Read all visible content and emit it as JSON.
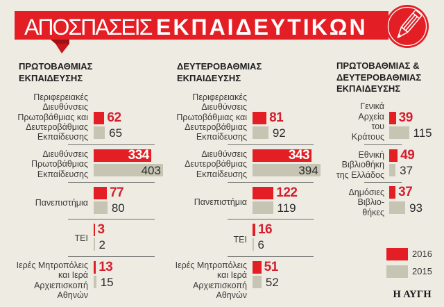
{
  "header": {
    "title_light": "ΑΠΟΣΠΑΣΕΙΣ",
    "title_bold": "ΕΚΠΑΙΔΕΥΤΙΚΩΝ",
    "icon": "pencil-icon"
  },
  "colors": {
    "accent_red": "#e31e24",
    "bar_2016": "#e31e24",
    "bar_2015": "#c6c5b4",
    "value_red": "#d41f2e",
    "background": "#eeebe2"
  },
  "sections": [
    {
      "title": [
        "ΠΡΩΤΟΒΑΘΜΙΑΣ",
        "ΕΚΠΑΙΔΕΥΣΗΣ"
      ],
      "rows": [
        {
          "label": [
            "Περιφερειακές",
            "Διευθύνσεις",
            "Πρωτοβάθμιας και",
            "Δευτεροβάθμιας",
            "Εκπαίδευσης"
          ],
          "v2016": 62,
          "v2015": 65
        },
        {
          "label": [
            "Διευθύνσεις",
            "Πρωτοβάθμιας",
            "Εκπαίδευσης"
          ],
          "v2016": 334,
          "v2015": 403
        },
        {
          "label": [
            "Πανεπιστήμια"
          ],
          "v2016": 77,
          "v2015": 80
        },
        {
          "label": [
            "ΤΕΙ"
          ],
          "v2016": 3,
          "v2015": 2
        },
        {
          "label": [
            "Ιερές Μητροπόλεις",
            "και Ιερά",
            "Αρχιεπισκοπή",
            "Αθηνών"
          ],
          "v2016": 13,
          "v2015": 15
        }
      ]
    },
    {
      "title": [
        "ΔΕΥΤΕΡΟΒΑΘΜΙΑΣ",
        "ΕΚΠΑΙΔΕΥΣΗΣ"
      ],
      "rows": [
        {
          "label": [
            "Περιφερειακές",
            "Διευθύνσεις",
            "Πρωτοβάθμιας και",
            "Δευτεροβάθμιας",
            "Εκπαίδευσης"
          ],
          "v2016": 81,
          "v2015": 92
        },
        {
          "label": [
            "Διευθύνσεις",
            "Δευτεροβάθμιας",
            "Εκπαίδευσης"
          ],
          "v2016": 343,
          "v2015": 394
        },
        {
          "label": [
            "Πανεπιστήμια"
          ],
          "v2016": 122,
          "v2015": 119
        },
        {
          "label": [
            "ΤΕΙ"
          ],
          "v2016": 16,
          "v2015": 6
        },
        {
          "label": [
            "Ιερές Μητροπόλεις",
            "και Ιερά",
            "Αρχιεπισκοπή",
            "Αθηνών"
          ],
          "v2016": 51,
          "v2015": 52
        }
      ]
    },
    {
      "title": [
        "ΠΡΩΤΟΒΑΘΜΙΑΣ &",
        "ΔΕΥΤΕΡΟΒΑΘΜΙΑΣ",
        "ΕΚΠΑΙΔΕΥΣΗΣ"
      ],
      "rows": [
        {
          "label": [
            "Γενικά",
            "Αρχεία",
            "του",
            "Κράτους"
          ],
          "v2016": 39,
          "v2015": 115
        },
        {
          "label": [
            "Εθνική",
            "Βιβλιοθήκη",
            "της Ελλάδος"
          ],
          "v2016": 49,
          "v2015": 37
        },
        {
          "label": [
            "Δημόσιες",
            "Βιβλιο-",
            "θήκες"
          ],
          "v2016": 37,
          "v2015": 93
        }
      ]
    }
  ],
  "legend": [
    {
      "label": "2016",
      "color": "#e31e24"
    },
    {
      "label": "2015",
      "color": "#c6c5b4"
    }
  ],
  "source": "Η ΑΥΓΗ",
  "chart_data": [
    {
      "type": "bar",
      "orientation": "horizontal",
      "suptitle": "ΑΠΟΣΠΑΣΕΙΣ ΕΚΠΑΙΔΕΥΤΙΚΩΝ",
      "title": "ΠΡΩΤΟΒΑΘΜΙΑΣ ΕΚΠΑΙΔΕΥΣΗΣ",
      "categories": [
        "Περιφερειακές Διευθύνσεις Πρωτοβάθμιας και Δευτεροβάθμιας Εκπαίδευσης",
        "Διευθύνσεις Πρωτοβάθμιας Εκπαίδευσης",
        "Πανεπιστήμια",
        "ΤΕΙ",
        "Ιερές Μητροπόλεις και Ιερά Αρχιεπισκοπή Αθηνών"
      ],
      "series": [
        {
          "name": "2016",
          "color": "#e31e24",
          "values": [
            62,
            334,
            77,
            3,
            13
          ]
        },
        {
          "name": "2015",
          "color": "#c6c5b4",
          "values": [
            65,
            403,
            80,
            2,
            15
          ]
        }
      ],
      "legend": [
        "2016",
        "2015"
      ],
      "legend_position": "bottom-right",
      "grid": false,
      "data_labels": true
    },
    {
      "type": "bar",
      "orientation": "horizontal",
      "suptitle": "ΑΠΟΣΠΑΣΕΙΣ ΕΚΠΑΙΔΕΥΤΙΚΩΝ",
      "title": "ΔΕΥΤΕΡΟΒΑΘΜΙΑΣ ΕΚΠΑΙΔΕΥΣΗΣ",
      "categories": [
        "Περιφερειακές Διευθύνσεις Πρωτοβάθμιας και Δευτεροβάθμιας Εκπαίδευσης",
        "Διευθύνσεις Δευτεροβάθμιας Εκπαίδευσης",
        "Πανεπιστήμια",
        "ΤΕΙ",
        "Ιερές Μητροπόλεις και Ιερά Αρχιεπισκοπή Αθηνών"
      ],
      "series": [
        {
          "name": "2016",
          "color": "#e31e24",
          "values": [
            81,
            343,
            122,
            16,
            51
          ]
        },
        {
          "name": "2015",
          "color": "#c6c5b4",
          "values": [
            92,
            394,
            119,
            6,
            52
          ]
        }
      ],
      "legend": [
        "2016",
        "2015"
      ],
      "legend_position": "bottom-right",
      "grid": false,
      "data_labels": true
    },
    {
      "type": "bar",
      "orientation": "horizontal",
      "suptitle": "ΑΠΟΣΠΑΣΕΙΣ ΕΚΠΑΙΔΕΥΤΙΚΩΝ",
      "title": "ΠΡΩΤΟΒΑΘΜΙΑΣ & ΔΕΥΤΕΡΟΒΑΘΜΙΑΣ ΕΚΠΑΙΔΕΥΣΗΣ",
      "categories": [
        "Γενικά Αρχεία του Κράτους",
        "Εθνική Βιβλιοθήκη της Ελλάδος",
        "Δημόσιες Βιβλιοθήκες"
      ],
      "series": [
        {
          "name": "2016",
          "color": "#e31e24",
          "values": [
            39,
            49,
            37
          ]
        },
        {
          "name": "2015",
          "color": "#c6c5b4",
          "values": [
            115,
            37,
            93
          ]
        }
      ],
      "legend": [
        "2016",
        "2015"
      ],
      "legend_position": "bottom-right",
      "grid": false,
      "data_labels": true
    }
  ]
}
